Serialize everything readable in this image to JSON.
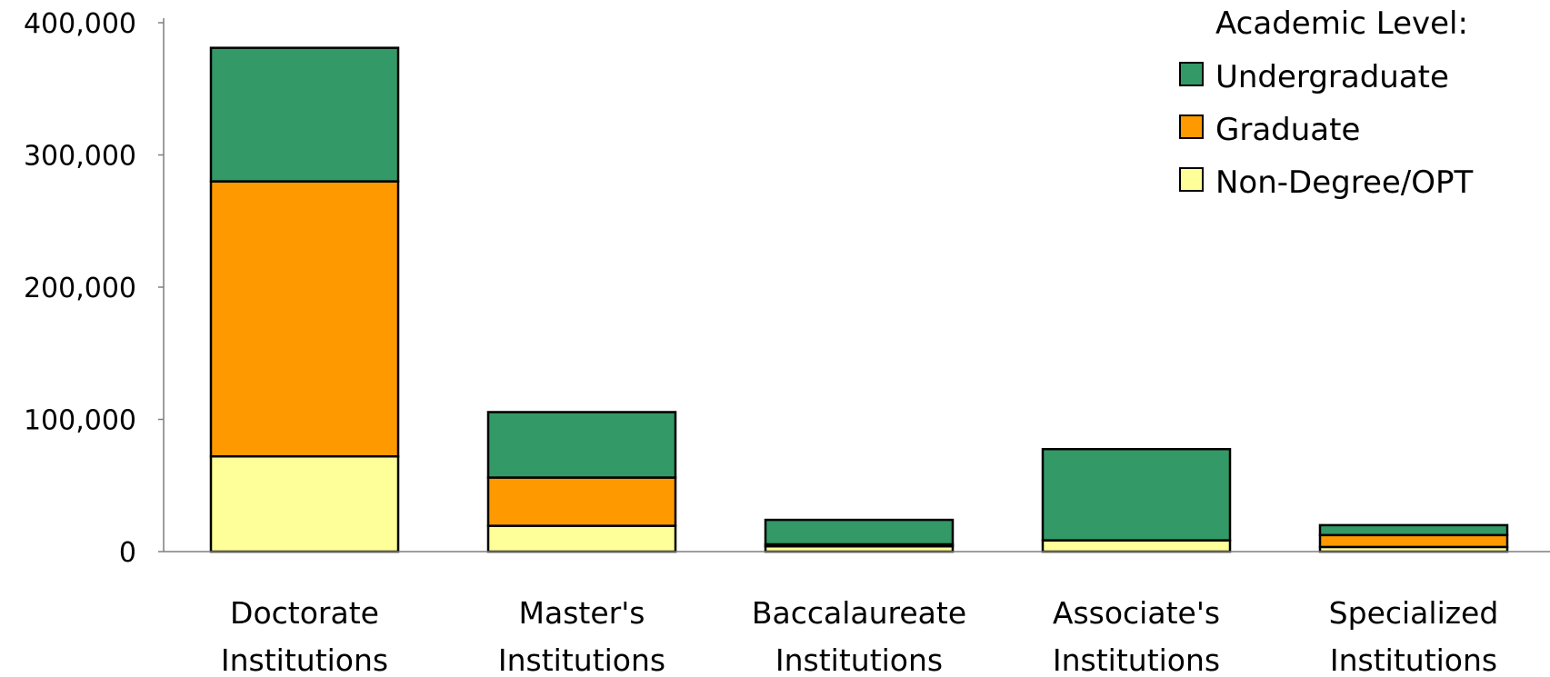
{
  "chart_data": {
    "type": "bar",
    "stacked": true,
    "categories": [
      [
        "Doctorate",
        "Institutions"
      ],
      [
        "Master's",
        "Institutions"
      ],
      [
        "Baccalaureate",
        "Institutions"
      ],
      [
        "Associate's",
        "Institutions"
      ],
      [
        "Specialized",
        "Institutions"
      ]
    ],
    "series": [
      {
        "name": "Non-Degree/OPT",
        "color": "#FFFF99",
        "values": [
          72000,
          19500,
          4000,
          8500,
          3500
        ]
      },
      {
        "name": "Graduate",
        "color": "#FF9900",
        "values": [
          208000,
          36500,
          1500,
          0,
          9000
        ]
      },
      {
        "name": "Undergraduate",
        "color": "#339966",
        "values": [
          101000,
          49500,
          18500,
          69000,
          7500
        ]
      }
    ],
    "legend": {
      "title": "Academic Level:",
      "placement": "top-right",
      "order": [
        "Undergraduate",
        "Graduate",
        "Non-Degree/OPT"
      ]
    },
    "yaxis": {
      "ticks": [
        0,
        100000,
        200000,
        300000,
        400000
      ],
      "tick_labels": [
        "0",
        "100,000",
        "200,000",
        "300,000",
        "400,000"
      ]
    },
    "ylim": [
      0,
      400000
    ],
    "grid": false,
    "title": "",
    "xlabel": "",
    "ylabel": ""
  }
}
